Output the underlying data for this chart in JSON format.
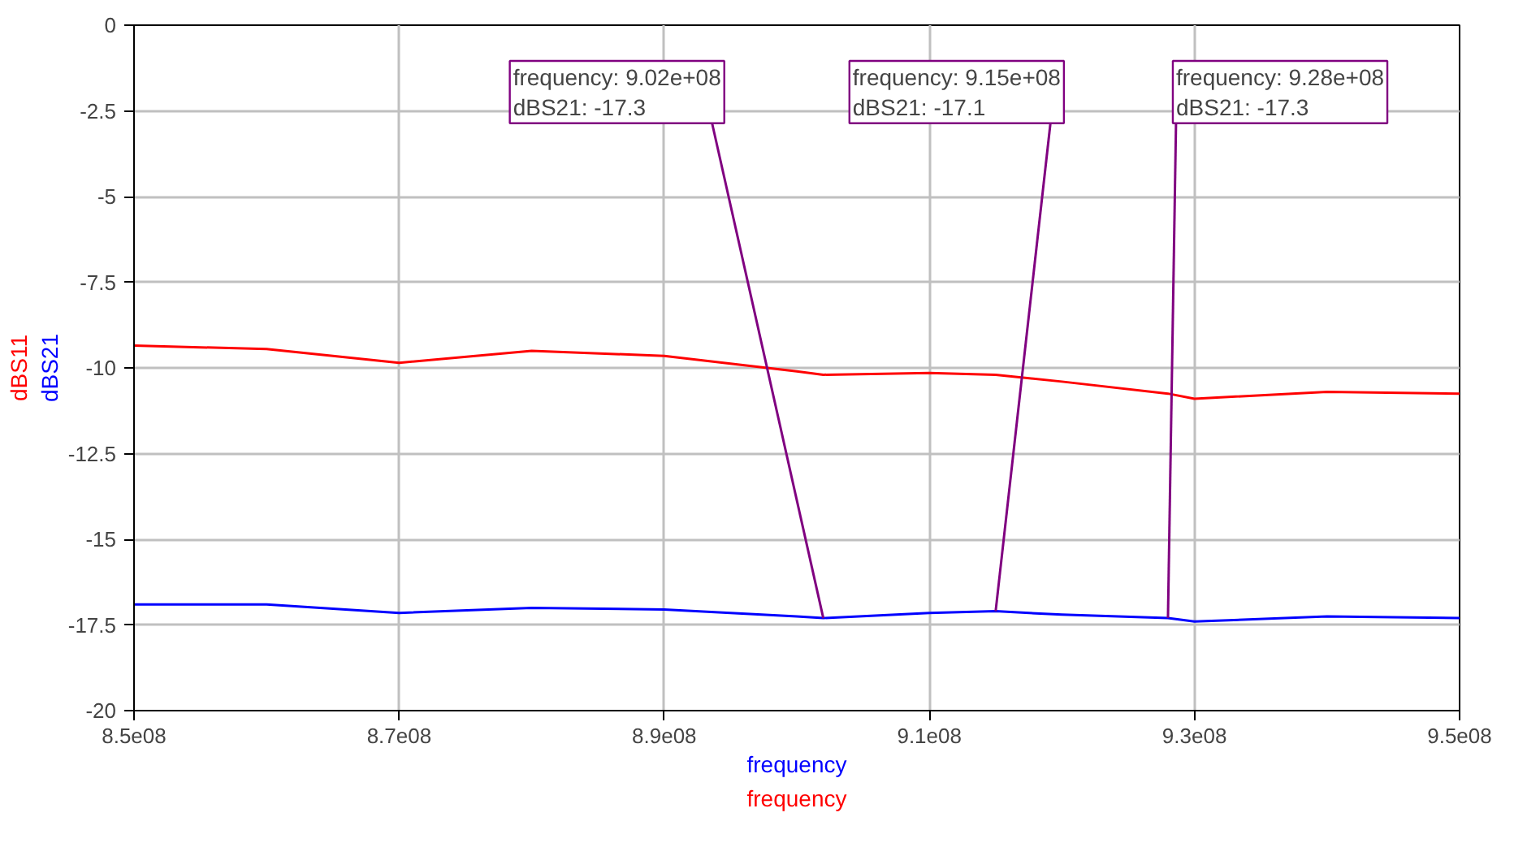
{
  "chart_data": {
    "type": "line",
    "xlabel": "frequency",
    "x": [
      850000000,
      860000000,
      870000000,
      880000000,
      890000000,
      900000000,
      902000000,
      910000000,
      915000000,
      920000000,
      928000000,
      930000000,
      940000000,
      950000000
    ],
    "series": [
      {
        "name": "dBS11",
        "color": "#ff0000",
        "values": [
          -9.35,
          -9.45,
          -9.85,
          -9.5,
          -9.65,
          -10.1,
          -10.2,
          -10.15,
          -10.2,
          -10.4,
          -10.75,
          -10.9,
          -10.7,
          -10.75
        ]
      },
      {
        "name": "dBS21",
        "color": "#0000ff",
        "values": [
          -16.9,
          -16.9,
          -17.15,
          -17.0,
          -17.05,
          -17.25,
          -17.3,
          -17.15,
          -17.1,
          -17.2,
          -17.3,
          -17.4,
          -17.25,
          -17.3
        ]
      }
    ],
    "annotations": [
      {
        "text": "frequency: 9.02e+08\ndBS21: -17.3",
        "x": 902000000,
        "y": -17.3
      },
      {
        "text": "frequency: 9.15e+08\ndBS21: -17.1",
        "x": 915000000,
        "y": -17.1
      },
      {
        "text": "frequency: 9.28e+08\ndBS21: -17.3",
        "x": 928000000,
        "y": -17.3
      }
    ],
    "xlim": [
      850000000,
      950000000
    ],
    "xticks": [
      {
        "value": 850000000,
        "label": "8.5e08"
      },
      {
        "value": 870000000,
        "label": "8.7e08"
      },
      {
        "value": 890000000,
        "label": "8.9e08"
      },
      {
        "value": 910000000,
        "label": "9.1e08"
      },
      {
        "value": 930000000,
        "label": "9.3e08"
      },
      {
        "value": 950000000,
        "label": "9.5e08"
      }
    ],
    "ylim": [
      -20,
      0
    ],
    "yticks": [
      0,
      -2.5,
      -5,
      -7.5,
      -10,
      -12.5,
      -15,
      -17.5,
      -20
    ],
    "grid": true,
    "marker": "none",
    "line_style": "solid"
  }
}
